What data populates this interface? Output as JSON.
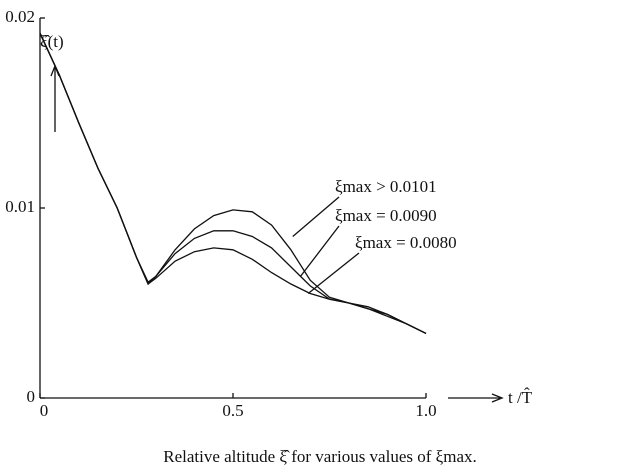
{
  "chart_data": {
    "type": "line",
    "caption": "Relative altitude ξ̂ for various values of ξmax.",
    "y_label": "ξ̂(t)",
    "x_label": "t /T̂",
    "x": [
      0,
      0.05,
      0.1,
      0.15,
      0.2,
      0.25,
      0.28,
      0.3,
      0.35,
      0.4,
      0.45,
      0.5,
      0.55,
      0.6,
      0.65,
      0.7,
      0.75,
      0.8,
      0.85,
      0.9,
      0.95,
      1.0
    ],
    "series": [
      {
        "name": "ξmax > 0.0101",
        "color": "#111111",
        "values": [
          0.0192,
          0.017,
          0.0145,
          0.0121,
          0.01,
          0.0074,
          0.0061,
          0.0064,
          0.0078,
          0.0089,
          0.0096,
          0.0099,
          0.0098,
          0.0091,
          0.0078,
          0.0062,
          0.0053,
          0.005,
          0.0047,
          0.0043,
          0.0039,
          0.0034
        ]
      },
      {
        "name": "ξmax = 0.0090",
        "color": "#111111",
        "values": [
          0.0192,
          0.017,
          0.0145,
          0.0121,
          0.01,
          0.0074,
          0.006,
          0.0064,
          0.0076,
          0.0084,
          0.0088,
          0.0088,
          0.0085,
          0.0079,
          0.0069,
          0.0059,
          0.0052,
          0.005,
          0.0047,
          0.0044,
          0.0039,
          0.0034
        ]
      },
      {
        "name": "ξmax = 0.0080",
        "color": "#111111",
        "values": [
          0.0192,
          0.017,
          0.0145,
          0.0121,
          0.01,
          0.0074,
          0.006,
          0.0063,
          0.0072,
          0.0077,
          0.0079,
          0.0078,
          0.0073,
          0.0066,
          0.006,
          0.0055,
          0.0052,
          0.005,
          0.0048,
          0.0044,
          0.0039,
          0.0034
        ]
      }
    ],
    "xlim": [
      0,
      1.0
    ],
    "ylim": [
      0,
      0.02
    ],
    "xticks": [
      0,
      0.5,
      {
        "value": 1.0,
        "label": "1.0"
      }
    ],
    "yticks": [
      0,
      0.01,
      0.02
    ]
  }
}
